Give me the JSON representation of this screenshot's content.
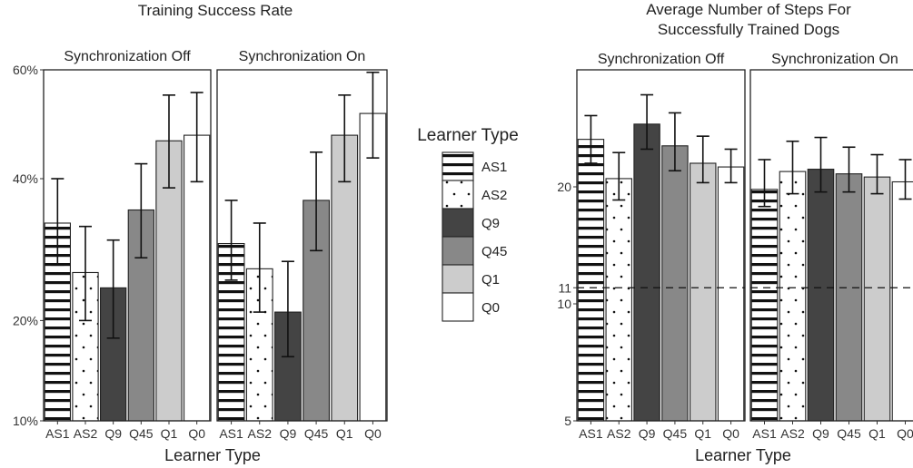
{
  "patterns": {
    "AS1": {
      "fill": "#ffffff",
      "style": "hstripes"
    },
    "AS2": {
      "fill": "#ffffff",
      "style": "dots"
    },
    "Q9": {
      "fill": "#444444",
      "style": "solid"
    },
    "Q45": {
      "fill": "#888888",
      "style": "solid"
    },
    "Q1": {
      "fill": "#cccccc",
      "style": "solid"
    },
    "Q0": {
      "fill": "#ffffff",
      "style": "solid"
    }
  },
  "legend": {
    "title": "Learner Type",
    "items": [
      "AS1",
      "AS2",
      "Q9",
      "Q45",
      "Q1",
      "Q0"
    ]
  },
  "chart_data": [
    {
      "type": "bar",
      "title": "Training Success Rate",
      "xlabel": "Learner Type",
      "ylabel": "",
      "scale": "sqrt",
      "ylim": [
        0.1,
        0.6
      ],
      "yticks": [
        0.1,
        0.2,
        0.4,
        0.6
      ],
      "ytick_labels": [
        "10%",
        "20%",
        "40%",
        "60%"
      ],
      "categories": [
        "AS1",
        "AS2",
        "Q9",
        "Q45",
        "Q1",
        "Q0"
      ],
      "facets": [
        {
          "name": "Synchronization Off",
          "values": [
            0.33,
            0.26,
            0.24,
            0.35,
            0.465,
            0.475
          ],
          "err_low": [
            0.27,
            0.2,
            0.18,
            0.28,
            0.385,
            0.395
          ],
          "err_high": [
            0.4,
            0.325,
            0.305,
            0.425,
            0.55,
            0.555
          ]
        },
        {
          "name": "Synchronization On",
          "values": [
            0.3,
            0.265,
            0.21,
            0.365,
            0.475,
            0.515
          ],
          "err_low": [
            0.25,
            0.21,
            0.16,
            0.29,
            0.395,
            0.435
          ],
          "err_high": [
            0.365,
            0.33,
            0.275,
            0.445,
            0.55,
            0.595
          ]
        }
      ]
    },
    {
      "type": "bar",
      "title": "Average Number of Steps For\nSuccessfully Trained Dogs",
      "xlabel": "Learner Type",
      "ylabel": "",
      "scale": "log",
      "ylim": [
        5,
        40
      ],
      "yticks": [
        5,
        10,
        11,
        20
      ],
      "ytick_labels": [
        "5",
        "10",
        "11",
        "20"
      ],
      "reference_line": 11,
      "categories": [
        "AS1",
        "AS2",
        "Q9",
        "Q45",
        "Q1",
        "Q0"
      ],
      "facets": [
        {
          "name": "Synchronization Off",
          "values": [
            26.5,
            21.0,
            29.0,
            25.5,
            23.0,
            22.5
          ],
          "err_low": [
            23.0,
            18.5,
            25.0,
            22.0,
            20.5,
            20.5
          ],
          "err_high": [
            30.5,
            24.5,
            34.5,
            31.0,
            27.0,
            25.0
          ]
        },
        {
          "name": "Synchronization On",
          "values": [
            19.7,
            21.9,
            22.2,
            21.6,
            21.2,
            20.6
          ],
          "err_low": [
            17.8,
            19.2,
            19.4,
            19.4,
            19.2,
            18.6
          ],
          "err_high": [
            23.5,
            26.2,
            26.8,
            25.3,
            24.2,
            23.5
          ]
        }
      ]
    }
  ]
}
